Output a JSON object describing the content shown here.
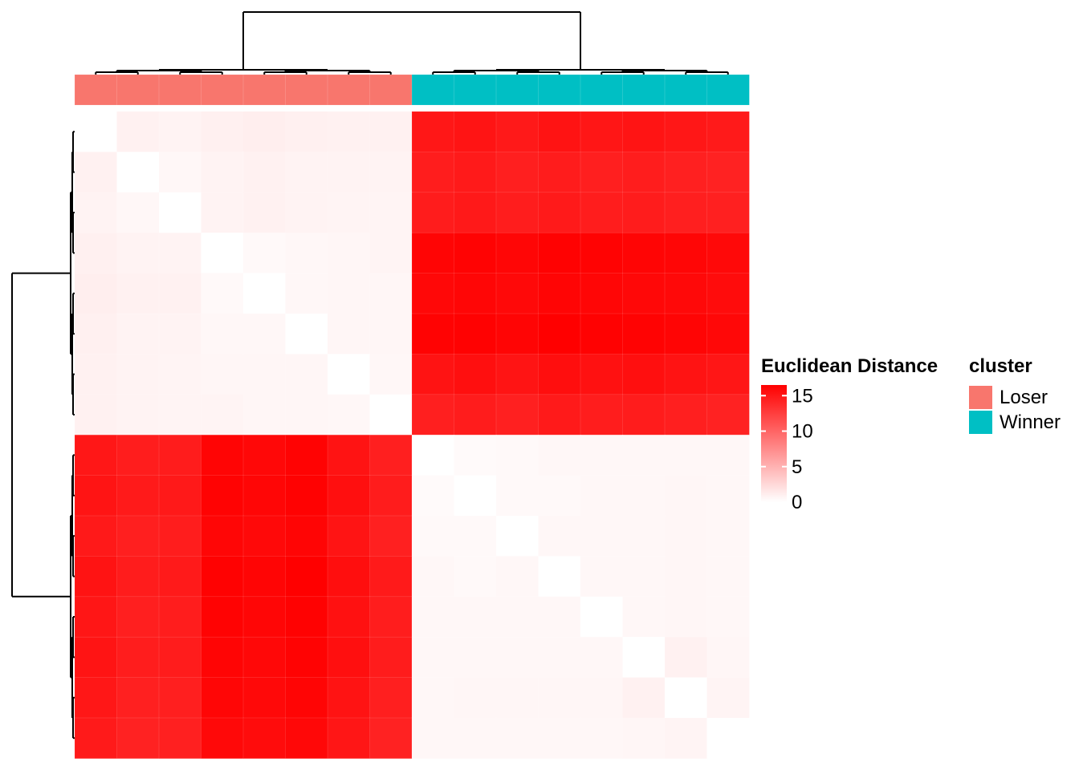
{
  "chart_data": {
    "type": "heatmap",
    "title": "",
    "xlabel": "",
    "ylabel": "",
    "rows": 16,
    "cols": 16,
    "col_annotation": [
      "Loser",
      "Loser",
      "Loser",
      "Loser",
      "Loser",
      "Loser",
      "Loser",
      "Loser",
      "Winner",
      "Winner",
      "Winner",
      "Winner",
      "Winner",
      "Winner",
      "Winner",
      "Winner"
    ],
    "row_annotation": [
      "Loser",
      "Loser",
      "Loser",
      "Loser",
      "Loser",
      "Loser",
      "Loser",
      "Loser",
      "Winner",
      "Winner",
      "Winner",
      "Winner",
      "Winner",
      "Winner",
      "Winner",
      "Winner"
    ],
    "values": [
      [
        0,
        0.9,
        0.8,
        1.0,
        1.1,
        1.0,
        0.9,
        0.9,
        15.0,
        15.2,
        14.9,
        15.3,
        15.1,
        15.2,
        15.0,
        14.8
      ],
      [
        0.9,
        0,
        0.5,
        0.8,
        0.9,
        0.8,
        0.8,
        0.8,
        14.6,
        14.8,
        14.5,
        14.7,
        14.5,
        14.6,
        14.4,
        14.3
      ],
      [
        0.8,
        0.5,
        0,
        0.8,
        0.9,
        0.8,
        0.7,
        0.7,
        14.7,
        14.9,
        14.6,
        14.8,
        14.6,
        14.7,
        14.5,
        14.4
      ],
      [
        1.0,
        0.8,
        0.8,
        0,
        0.4,
        0.5,
        0.6,
        0.7,
        16.2,
        16.3,
        16.1,
        16.4,
        16.3,
        16.2,
        16.1,
        15.9
      ],
      [
        1.1,
        0.9,
        0.9,
        0.4,
        0,
        0.5,
        0.6,
        0.6,
        16.0,
        16.1,
        15.9,
        16.2,
        16.1,
        16.0,
        15.9,
        15.7
      ],
      [
        1.0,
        0.8,
        0.8,
        0.5,
        0.5,
        0,
        0.6,
        0.6,
        16.3,
        16.4,
        16.2,
        16.5,
        16.4,
        16.3,
        16.2,
        16.0
      ],
      [
        0.9,
        0.8,
        0.7,
        0.6,
        0.6,
        0.6,
        0,
        0.5,
        15.3,
        15.5,
        15.2,
        15.6,
        15.4,
        15.5,
        15.3,
        15.1
      ],
      [
        0.9,
        0.8,
        0.7,
        0.7,
        0.6,
        0.6,
        0.5,
        0,
        14.5,
        14.7,
        14.4,
        14.8,
        14.6,
        14.7,
        14.5,
        14.3
      ],
      [
        15.0,
        14.6,
        14.7,
        16.2,
        16.0,
        16.3,
        15.3,
        14.5,
        0,
        0.3,
        0.4,
        0.5,
        0.5,
        0.5,
        0.5,
        0.5
      ],
      [
        15.2,
        14.8,
        14.9,
        16.3,
        16.1,
        16.4,
        15.5,
        14.7,
        0.3,
        0,
        0.4,
        0.4,
        0.5,
        0.5,
        0.6,
        0.5
      ],
      [
        14.9,
        14.5,
        14.6,
        16.1,
        15.9,
        16.2,
        15.2,
        14.4,
        0.4,
        0.4,
        0,
        0.5,
        0.5,
        0.5,
        0.6,
        0.5
      ],
      [
        15.3,
        14.7,
        14.8,
        16.4,
        16.2,
        16.5,
        15.6,
        14.8,
        0.5,
        0.4,
        0.5,
        0,
        0.5,
        0.5,
        0.6,
        0.5
      ],
      [
        15.1,
        14.5,
        14.6,
        16.3,
        16.1,
        16.4,
        15.4,
        14.6,
        0.5,
        0.5,
        0.5,
        0.5,
        0,
        0.5,
        0.6,
        0.5
      ],
      [
        15.2,
        14.6,
        14.7,
        16.2,
        16.0,
        16.3,
        15.5,
        14.7,
        0.5,
        0.5,
        0.5,
        0.5,
        0.5,
        0,
        0.9,
        0.6
      ],
      [
        15.0,
        14.4,
        14.5,
        16.1,
        15.9,
        16.2,
        15.3,
        14.5,
        0.5,
        0.6,
        0.6,
        0.6,
        0.6,
        0.9,
        0,
        0.7
      ],
      [
        14.8,
        14.3,
        14.4,
        15.9,
        15.7,
        16.0,
        15.1,
        14.3,
        0.5,
        0.5,
        0.5,
        0.5,
        0.5,
        0.6,
        0.7,
        0
      ]
    ],
    "color_scale": {
      "low": "#ffffff",
      "high": "#ff0000",
      "min": 0,
      "max": 16.5
    },
    "legend_heat": {
      "title": "Euclidean Distance",
      "ticks": [
        0,
        5,
        10,
        15
      ]
    },
    "legend_cluster": {
      "title": "cluster",
      "entries": [
        {
          "label": "Loser",
          "color": "#f8766d"
        },
        {
          "label": "Winner",
          "color": "#00bfc4"
        }
      ]
    },
    "dendrogram": true,
    "grid": false
  }
}
